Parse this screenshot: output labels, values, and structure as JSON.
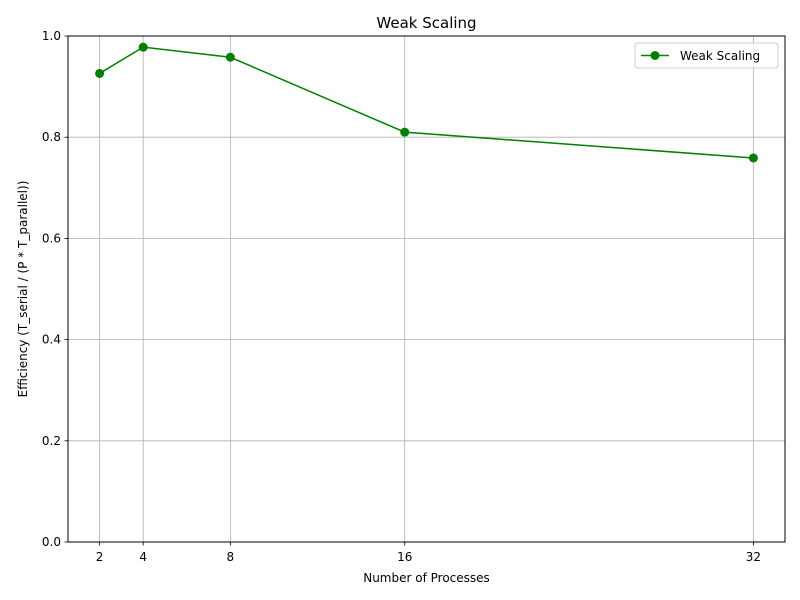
{
  "chart_data": {
    "type": "line",
    "title": "Weak Scaling",
    "xlabel": "Number of Processes",
    "ylabel": "Efficiency (T_serial / (P * T_parallel))",
    "x": [
      2,
      4,
      8,
      16,
      32
    ],
    "series": [
      {
        "name": "Weak Scaling",
        "values": [
          0.926,
          0.978,
          0.958,
          0.81,
          0.759
        ],
        "color": "#008000",
        "marker": "circle"
      }
    ],
    "xticks": [
      2,
      4,
      8,
      16,
      32
    ],
    "xtick_labels": [
      "2",
      "4",
      "8",
      "16",
      "32"
    ],
    "yticks": [
      0.0,
      0.2,
      0.4,
      0.6,
      0.8,
      1.0
    ],
    "ytick_labels": [
      "0.0",
      "0.2",
      "0.4",
      "0.6",
      "0.8",
      "1.0"
    ],
    "xlim": [
      0.55,
      33.45
    ],
    "ylim": [
      0,
      1.0
    ],
    "grid": true,
    "grid_color": "#b0b0b0",
    "legend_position": "top-right"
  }
}
